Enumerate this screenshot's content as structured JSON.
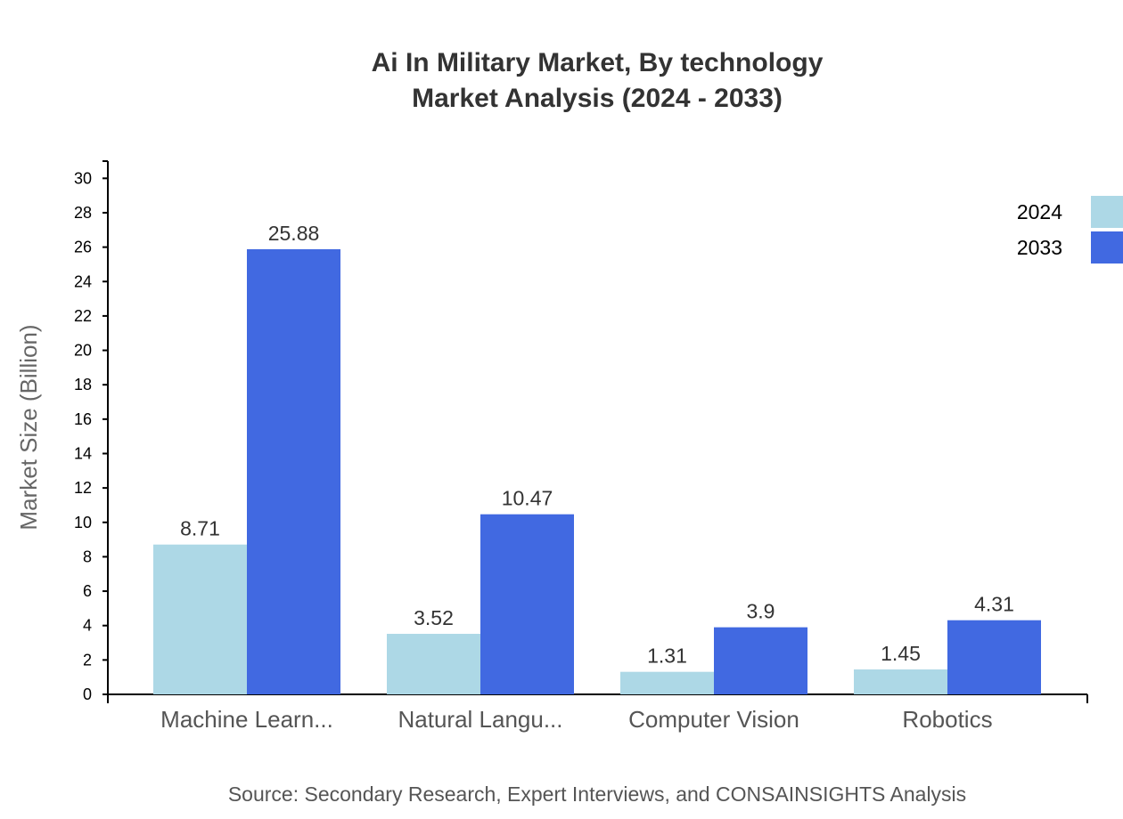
{
  "chart_data": {
    "type": "bar",
    "title": "Ai In Military Market, By technology",
    "subtitle": "Market Analysis (2024 - 2033)",
    "xlabel": "",
    "ylabel": "Market Size (Billion)",
    "ylim": [
      0,
      31
    ],
    "yticks": [
      0,
      2,
      4,
      6,
      8,
      10,
      12,
      14,
      16,
      18,
      20,
      22,
      24,
      26,
      28,
      30
    ],
    "categories": [
      "Machine Learn...",
      "Natural Langu...",
      "Computer Vision",
      "Robotics"
    ],
    "series": [
      {
        "name": "2024",
        "color": "#ADD8E6",
        "values": [
          8.71,
          3.52,
          1.31,
          1.45
        ]
      },
      {
        "name": "2033",
        "color": "#4169E1",
        "values": [
          25.88,
          10.47,
          3.9,
          4.31
        ]
      }
    ],
    "legend": "top-right",
    "grid": false,
    "source": "Source: Secondary Research, Expert Interviews, and CONSAINSIGHTS Analysis"
  }
}
